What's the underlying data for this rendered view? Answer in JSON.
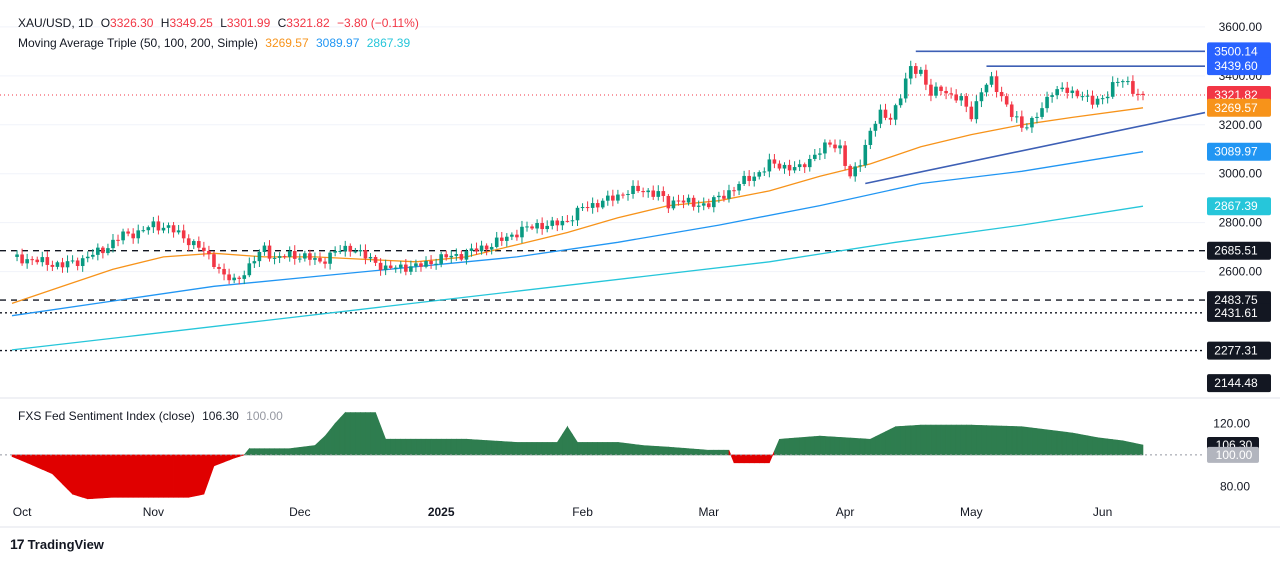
{
  "header": {
    "symbol": "XAU/USD, 1D",
    "o_label": "O",
    "o_val": "3326.30",
    "h_label": "H",
    "h_val": "3349.25",
    "l_label": "L",
    "l_val": "3301.99",
    "c_label": "C",
    "c_val": "3321.82",
    "change": "−3.80 (−0.11%)",
    "ma_title": "Moving Average Triple (50, 100, 200, Simple)",
    "ma50": "3269.57",
    "ma100": "3089.97",
    "ma200": "2867.39",
    "ind_title": "FXS Fed Sentiment Index (close)",
    "ind_val": "106.30",
    "ind_base": "100.00"
  },
  "colors": {
    "up": "#089981",
    "down": "#f23645",
    "ma50": "#f7931a",
    "ma100": "#2196f3",
    "ma200": "#26c6da",
    "trend": "#3d5fb5",
    "fill_up": "#2e7d4f",
    "fill_down": "#e00000"
  },
  "watermark": "TradingView",
  "chart_data": [
    {
      "type": "candlestick",
      "title": "XAU/USD, 1D",
      "ylim": [
        2100,
        3620
      ],
      "y_ticks": [
        2600,
        2800,
        3000,
        3200,
        3400,
        3600
      ],
      "y_tick_labels": [
        "2600.00",
        "2800.00",
        "3000.00",
        "3200.00",
        "3400.00",
        "3600.00"
      ],
      "x_labels": [
        "Oct",
        "Nov",
        "Dec",
        "2025",
        "Feb",
        "Mar",
        "Apr",
        "May",
        "Jun"
      ],
      "price_labels": [
        {
          "value": 3500.14,
          "text": "3500.14",
          "color": "#2962ff"
        },
        {
          "value": 3439.6,
          "text": "3439.60",
          "color": "#2962ff"
        },
        {
          "value": 3321.82,
          "text": "3321.82",
          "color": "#f23645"
        },
        {
          "value": 3269.57,
          "text": "3269.57",
          "color": "#f7931a"
        },
        {
          "value": 3089.97,
          "text": "3089.97",
          "color": "#2196f3"
        },
        {
          "value": 2867.39,
          "text": "2867.39",
          "color": "#26c6da"
        },
        {
          "value": 2685.51,
          "text": "2685.51",
          "color": "#131722"
        },
        {
          "value": 2483.75,
          "text": "2483.75",
          "color": "#131722"
        },
        {
          "value": 2431.61,
          "text": "2431.61",
          "color": "#131722"
        },
        {
          "value": 2277.31,
          "text": "2277.31",
          "color": "#131722"
        },
        {
          "value": 2144.48,
          "text": "2144.48",
          "color": "#131722"
        }
      ],
      "levels": [
        {
          "value": 2685.51,
          "style": "dashed"
        },
        {
          "value": 2483.75,
          "style": "dashed"
        },
        {
          "value": 2431.61,
          "style": "dotted"
        },
        {
          "value": 2277.31,
          "style": "dotted"
        }
      ],
      "close_path": [
        [
          0,
          2660
        ],
        [
          3,
          2650
        ],
        [
          6,
          2640
        ],
        [
          10,
          2625
        ],
        [
          14,
          2650
        ],
        [
          18,
          2690
        ],
        [
          22,
          2750
        ],
        [
          25,
          2760
        ],
        [
          28,
          2790
        ],
        [
          31,
          2780
        ],
        [
          34,
          2740
        ],
        [
          37,
          2700
        ],
        [
          40,
          2640
        ],
        [
          42,
          2580
        ],
        [
          44,
          2560
        ],
        [
          47,
          2620
        ],
        [
          50,
          2700
        ],
        [
          52,
          2650
        ],
        [
          55,
          2670
        ],
        [
          58,
          2660
        ],
        [
          61,
          2640
        ],
        [
          64,
          2680
        ],
        [
          67,
          2700
        ],
        [
          70,
          2660
        ],
        [
          72,
          2640
        ],
        [
          74,
          2610
        ],
        [
          77,
          2620
        ],
        [
          80,
          2620
        ],
        [
          83,
          2640
        ],
        [
          86,
          2660
        ],
        [
          89,
          2670
        ],
        [
          92,
          2690
        ],
        [
          95,
          2710
        ],
        [
          98,
          2740
        ],
        [
          101,
          2770
        ],
        [
          104,
          2790
        ],
        [
          107,
          2790
        ],
        [
          110,
          2810
        ],
        [
          113,
          2860
        ],
        [
          116,
          2880
        ],
        [
          119,
          2900
        ],
        [
          122,
          2930
        ],
        [
          125,
          2930
        ],
        [
          128,
          2920
        ],
        [
          130,
          2870
        ],
        [
          132,
          2900
        ],
        [
          135,
          2870
        ],
        [
          138,
          2880
        ],
        [
          141,
          2910
        ],
        [
          144,
          2960
        ],
        [
          147,
          2990
        ],
        [
          150,
          3040
        ],
        [
          153,
          3030
        ],
        [
          156,
          3020
        ],
        [
          159,
          3080
        ],
        [
          162,
          3120
        ],
        [
          164,
          3110
        ],
        [
          166,
          2980
        ],
        [
          168,
          3050
        ],
        [
          170,
          3180
        ],
        [
          172,
          3240
        ],
        [
          174,
          3230
        ],
        [
          176,
          3320
        ],
        [
          178,
          3430
        ],
        [
          180,
          3420
        ],
        [
          182,
          3320
        ],
        [
          184,
          3350
        ],
        [
          186,
          3320
        ],
        [
          188,
          3300
        ],
        [
          190,
          3240
        ],
        [
          192,
          3340
        ],
        [
          194,
          3380
        ],
        [
          196,
          3320
        ],
        [
          198,
          3240
        ],
        [
          200,
          3190
        ],
        [
          202,
          3220
        ],
        [
          204,
          3260
        ],
        [
          206,
          3340
        ],
        [
          208,
          3350
        ],
        [
          210,
          3320
        ],
        [
          212,
          3330
        ],
        [
          214,
          3290
        ],
        [
          216,
          3300
        ],
        [
          218,
          3370
        ],
        [
          220,
          3380
        ],
        [
          222,
          3340
        ],
        [
          224,
          3322
        ]
      ],
      "ma50": [
        [
          0,
          2470
        ],
        [
          10,
          2540
        ],
        [
          20,
          2610
        ],
        [
          30,
          2660
        ],
        [
          40,
          2675
        ],
        [
          50,
          2660
        ],
        [
          60,
          2660
        ],
        [
          70,
          2650
        ],
        [
          80,
          2640
        ],
        [
          90,
          2660
        ],
        [
          100,
          2710
        ],
        [
          110,
          2760
        ],
        [
          120,
          2820
        ],
        [
          130,
          2870
        ],
        [
          140,
          2890
        ],
        [
          150,
          2930
        ],
        [
          160,
          2990
        ],
        [
          170,
          3040
        ],
        [
          180,
          3110
        ],
        [
          190,
          3160
        ],
        [
          200,
          3200
        ],
        [
          210,
          3230
        ],
        [
          224,
          3269.57
        ]
      ],
      "ma100": [
        [
          0,
          2420
        ],
        [
          20,
          2480
        ],
        [
          40,
          2540
        ],
        [
          60,
          2580
        ],
        [
          80,
          2620
        ],
        [
          100,
          2660
        ],
        [
          120,
          2720
        ],
        [
          140,
          2790
        ],
        [
          160,
          2870
        ],
        [
          180,
          2960
        ],
        [
          200,
          3010
        ],
        [
          224,
          3089.97
        ]
      ],
      "ma200": [
        [
          0,
          2280
        ],
        [
          25,
          2340
        ],
        [
          50,
          2400
        ],
        [
          75,
          2460
        ],
        [
          100,
          2520
        ],
        [
          125,
          2580
        ],
        [
          150,
          2640
        ],
        [
          175,
          2720
        ],
        [
          200,
          2790
        ],
        [
          224,
          2867.39
        ]
      ],
      "trendlines": [
        {
          "from": [
            169,
            2960
          ],
          "to": [
            224,
            3250
          ]
        },
        {
          "from": [
            179,
            3500.14
          ],
          "to": [
            224,
            3500.14
          ]
        },
        {
          "from": [
            193,
            3439.6
          ],
          "to": [
            224,
            3439.6
          ]
        }
      ]
    },
    {
      "type": "area",
      "title": "FXS Fed Sentiment Index (close)",
      "ylim": [
        70,
        135
      ],
      "y_ticks": [
        80,
        120
      ],
      "y_tick_labels": [
        "80.00",
        "120.00"
      ],
      "baseline": 100,
      "last": 106.3,
      "series": [
        [
          0,
          99
        ],
        [
          3,
          95
        ],
        [
          8,
          88
        ],
        [
          12,
          75
        ],
        [
          15,
          72
        ],
        [
          20,
          73
        ],
        [
          25,
          73
        ],
        [
          30,
          73
        ],
        [
          35,
          73
        ],
        [
          38,
          75
        ],
        [
          40,
          93
        ],
        [
          44,
          98
        ],
        [
          46,
          100
        ],
        [
          47,
          104
        ],
        [
          55,
          104
        ],
        [
          60,
          106
        ],
        [
          62,
          112
        ],
        [
          64,
          120
        ],
        [
          66,
          127
        ],
        [
          72,
          127
        ],
        [
          74,
          110
        ],
        [
          80,
          110
        ],
        [
          90,
          110
        ],
        [
          100,
          108
        ],
        [
          108,
          108
        ],
        [
          110,
          118
        ],
        [
          112,
          108
        ],
        [
          120,
          108
        ],
        [
          125,
          106
        ],
        [
          130,
          105
        ],
        [
          138,
          103
        ],
        [
          142,
          103
        ],
        [
          143,
          95
        ],
        [
          150,
          95
        ],
        [
          152,
          110
        ],
        [
          160,
          112
        ],
        [
          170,
          110
        ],
        [
          175,
          118
        ],
        [
          180,
          119
        ],
        [
          190,
          119
        ],
        [
          200,
          118
        ],
        [
          210,
          114
        ],
        [
          215,
          111
        ],
        [
          220,
          109
        ],
        [
          224,
          106.3
        ]
      ]
    }
  ]
}
